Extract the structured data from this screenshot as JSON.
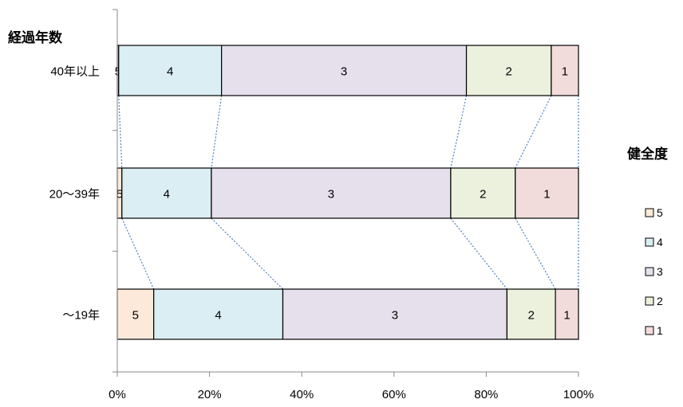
{
  "chart_data": {
    "type": "bar",
    "orientation": "horizontal",
    "stacked": "percent",
    "ylabel": "経過年数",
    "categories": [
      "40年以上",
      "20〜39年",
      "〜19年"
    ],
    "series": [
      {
        "name": "5",
        "color": "#fde9d9",
        "values": [
          0.3,
          1.0,
          7.9
        ]
      },
      {
        "name": "4",
        "color": "#dbeef3",
        "values": [
          22.3,
          19.4,
          28.0
        ]
      },
      {
        "name": "3",
        "color": "#e5e0ec",
        "values": [
          53.1,
          51.9,
          48.6
        ]
      },
      {
        "name": "2",
        "color": "#ebf1dd",
        "values": [
          18.4,
          14.0,
          10.5
        ]
      },
      {
        "name": "1",
        "color": "#f2dcdb",
        "values": [
          5.9,
          13.7,
          5.0
        ]
      }
    ],
    "xticks": [
      "0%",
      "20%",
      "40%",
      "60%",
      "80%",
      "100%"
    ],
    "xlim": [
      0,
      100
    ],
    "legend_title": "健全度",
    "legend_position": "right",
    "series_lines": true,
    "grid": false
  }
}
